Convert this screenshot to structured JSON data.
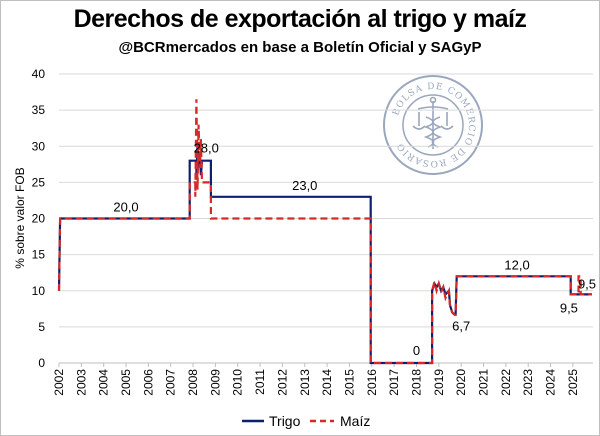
{
  "title": "Derechos de exportación al trigo y maíz",
  "subtitle": "@BCRmercados en base a Boletín Oficial y SAGyP",
  "seal_text": "BOLSA DE COMERCIO DE ROSARIO",
  "colors": {
    "trigo": "#0d1f6e",
    "maiz": "#d62a28",
    "grid": "#d9d9d9",
    "seal": "#9aa7bd"
  },
  "chart_data": {
    "type": "line",
    "ylabel": "% sobre valor FOB",
    "xlabel": "",
    "ylim": [
      0,
      40
    ],
    "xlim": [
      2002,
      2025.9
    ],
    "y_ticks": [
      "0",
      "5",
      "10",
      "15",
      "20",
      "25",
      "30",
      "35",
      "40"
    ],
    "x_ticks": [
      "2002",
      "2003",
      "2004",
      "2005",
      "2006",
      "2007",
      "2008",
      "2009",
      "2010",
      "2011",
      "2012",
      "2013",
      "2014",
      "2015",
      "2016",
      "2017",
      "2018",
      "2019",
      "2020",
      "2021",
      "2022",
      "2023",
      "2024",
      "2025"
    ],
    "grid": "horizontal",
    "legend": {
      "position": "bottom",
      "entries": [
        "Trigo",
        "Maíz"
      ]
    },
    "series": [
      {
        "name": "Trigo",
        "style": "solid",
        "points": [
          [
            2002.0,
            10
          ],
          [
            2002.05,
            20
          ],
          [
            2007.85,
            20
          ],
          [
            2007.85,
            28
          ],
          [
            2008.15,
            28
          ],
          [
            2008.15,
            26
          ],
          [
            2008.2,
            30
          ],
          [
            2008.25,
            27
          ],
          [
            2008.3,
            29
          ],
          [
            2008.35,
            26
          ],
          [
            2008.4,
            28
          ],
          [
            2008.8,
            28
          ],
          [
            2008.8,
            23
          ],
          [
            2015.95,
            23
          ],
          [
            2015.95,
            0
          ],
          [
            2018.7,
            0
          ],
          [
            2018.7,
            10
          ],
          [
            2018.8,
            11
          ],
          [
            2018.9,
            10.5
          ],
          [
            2019.0,
            11
          ],
          [
            2019.1,
            10
          ],
          [
            2019.2,
            10.5
          ],
          [
            2019.3,
            9.5
          ],
          [
            2019.45,
            10
          ],
          [
            2019.5,
            8
          ],
          [
            2019.6,
            7
          ],
          [
            2019.7,
            6.7
          ],
          [
            2019.75,
            6.7
          ],
          [
            2019.8,
            12
          ],
          [
            2024.9,
            12
          ],
          [
            2024.9,
            9.5
          ],
          [
            2025.85,
            9.5
          ]
        ]
      },
      {
        "name": "Maíz",
        "style": "dashed",
        "points": [
          [
            2002.0,
            10
          ],
          [
            2002.05,
            20
          ],
          [
            2007.85,
            20
          ],
          [
            2007.85,
            25
          ],
          [
            2008.1,
            25
          ],
          [
            2008.1,
            23
          ],
          [
            2008.15,
            36.5
          ],
          [
            2008.2,
            24
          ],
          [
            2008.25,
            33
          ],
          [
            2008.3,
            27
          ],
          [
            2008.35,
            31
          ],
          [
            2008.4,
            25
          ],
          [
            2008.8,
            25
          ],
          [
            2008.8,
            20
          ],
          [
            2015.95,
            20
          ],
          [
            2015.95,
            0
          ],
          [
            2018.7,
            0
          ],
          [
            2018.7,
            10
          ],
          [
            2018.8,
            11.2
          ],
          [
            2018.9,
            10
          ],
          [
            2019.0,
            11
          ],
          [
            2019.1,
            9.8
          ],
          [
            2019.2,
            10.5
          ],
          [
            2019.3,
            9
          ],
          [
            2019.45,
            10
          ],
          [
            2019.5,
            8
          ],
          [
            2019.6,
            7
          ],
          [
            2019.7,
            6.7
          ],
          [
            2019.75,
            6.7
          ],
          [
            2019.8,
            12
          ],
          [
            2024.9,
            12
          ],
          [
            2024.9,
            9.5
          ],
          [
            2025.25,
            9.5
          ],
          [
            2025.25,
            12
          ],
          [
            2025.35,
            12
          ],
          [
            2025.35,
            9.5
          ],
          [
            2025.85,
            9.5
          ]
        ]
      }
    ],
    "annotations": [
      {
        "text": "20,0",
        "x": 2005.0,
        "y": 20
      },
      {
        "text": "28,0",
        "x": 2008.5,
        "y": 28
      },
      {
        "text": "23,0",
        "x": 2013.0,
        "y": 23
      },
      {
        "text": "0",
        "x": 2018.0,
        "y": 0
      },
      {
        "text": "6,7",
        "x": 2020.0,
        "y": 6.7
      },
      {
        "text": "12,0",
        "x": 2022.5,
        "y": 12
      },
      {
        "text": "9,5",
        "x": 2025.0,
        "y": 9.5
      },
      {
        "text": "9,5",
        "x": 2025.9,
        "y": 9.5
      }
    ]
  }
}
